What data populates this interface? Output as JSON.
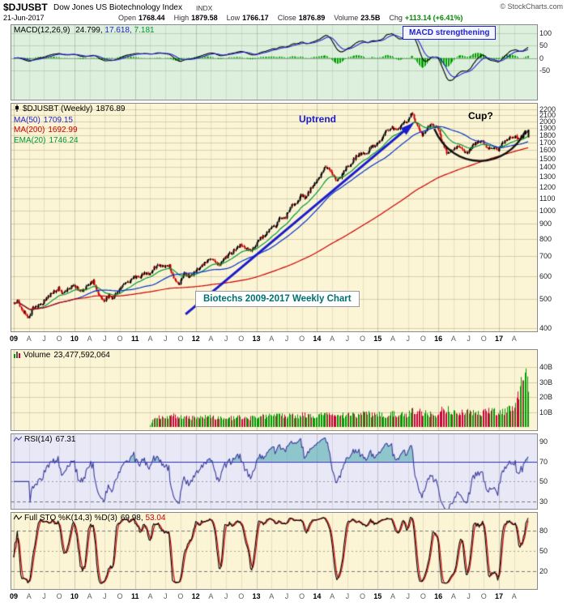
{
  "header": {
    "symbol": "$DJUSBT",
    "index_name": "Dow Jones US Biotechnology Index",
    "exchange": "INDX",
    "copyright": "© StockCharts.com",
    "date": "21-Jun-2017",
    "quote": {
      "open_label": "Open",
      "open": "1768.44",
      "high_label": "High",
      "high": "1879.58",
      "low_label": "Low",
      "low": "1766.17",
      "close_label": "Close",
      "close": "1876.89",
      "volume_label": "Volume",
      "volume": "23.5B",
      "chg_label": "Chg",
      "chg": "+113.14 (+6.41%)"
    }
  },
  "panels": {
    "macd": {
      "label": "MACD(12,26,9)",
      "value_macd": "24.799,",
      "value_signal": "17.618,",
      "value_hist": "7.181",
      "annotation": "MACD strengthening",
      "ticks": [
        100,
        50,
        0,
        -50
      ]
    },
    "price": {
      "legend_symbol": "$DJUSBT (Weekly)",
      "legend_value": "1876.89",
      "ma50_label": "MA(50)",
      "ma50_value": "1709.15",
      "ma200_label": "MA(200)",
      "ma200_value": "1692.99",
      "ema20_label": "EMA(20)",
      "ema20_value": "1746.24",
      "uptrend": "Uptrend",
      "cup": "Cup?",
      "caption": "Biotechs 2009-2017 Weekly Chart",
      "ticks": [
        2200,
        2100,
        2000,
        1900,
        1800,
        1700,
        1600,
        1500,
        1400,
        1300,
        1200,
        1100,
        1000,
        900,
        800,
        700,
        600,
        500,
        400
      ]
    },
    "volume": {
      "label": "Volume",
      "value": "23,477,592,064",
      "ticks": [
        {
          "v": 40,
          "label": "40B"
        },
        {
          "v": 30,
          "label": "30B"
        },
        {
          "v": 20,
          "label": "20B"
        },
        {
          "v": 10,
          "label": "10B"
        }
      ]
    },
    "rsi": {
      "label": "RSI(14)",
      "value": "67.31",
      "ticks": [
        90,
        70,
        50,
        30
      ]
    },
    "sto": {
      "label": "Full STO %K(14,3) %D(3)",
      "value_k": "69.98,",
      "value_d": "53.04",
      "ticks": [
        80,
        50,
        20
      ]
    }
  },
  "xaxis": {
    "ticks": [
      {
        "m": 0,
        "label": "09",
        "year": true
      },
      {
        "m": 3,
        "label": "A"
      },
      {
        "m": 6,
        "label": "J"
      },
      {
        "m": 9,
        "label": "O"
      },
      {
        "m": 12,
        "label": "10",
        "year": true
      },
      {
        "m": 15,
        "label": "A"
      },
      {
        "m": 18,
        "label": "J"
      },
      {
        "m": 21,
        "label": "O"
      },
      {
        "m": 24,
        "label": "11",
        "year": true
      },
      {
        "m": 27,
        "label": "A"
      },
      {
        "m": 30,
        "label": "J"
      },
      {
        "m": 33,
        "label": "O"
      },
      {
        "m": 36,
        "label": "12",
        "year": true
      },
      {
        "m": 39,
        "label": "A"
      },
      {
        "m": 42,
        "label": "J"
      },
      {
        "m": 45,
        "label": "O"
      },
      {
        "m": 48,
        "label": "13",
        "year": true
      },
      {
        "m": 51,
        "label": "A"
      },
      {
        "m": 54,
        "label": "J"
      },
      {
        "m": 57,
        "label": "O"
      },
      {
        "m": 60,
        "label": "14",
        "year": true
      },
      {
        "m": 63,
        "label": "A"
      },
      {
        "m": 66,
        "label": "J"
      },
      {
        "m": 69,
        "label": "O"
      },
      {
        "m": 72,
        "label": "15",
        "year": true
      },
      {
        "m": 75,
        "label": "A"
      },
      {
        "m": 78,
        "label": "J"
      },
      {
        "m": 81,
        "label": "O"
      },
      {
        "m": 84,
        "label": "16",
        "year": true
      },
      {
        "m": 87,
        "label": "A"
      },
      {
        "m": 90,
        "label": "J"
      },
      {
        "m": 93,
        "label": "O"
      },
      {
        "m": 96,
        "label": "17",
        "year": true
      },
      {
        "m": 99,
        "label": "A"
      }
    ]
  },
  "colors": {
    "up": "#000000",
    "down": "#cc0000",
    "vol_up": "#009900",
    "vol_down": "#cc0033",
    "ma50": "#0033cc",
    "ma200": "#cc0000",
    "ema20": "#009933",
    "macd": "#000000",
    "signal": "#2222cc",
    "hist": "#00a000",
    "rsi": "#3b3b9e",
    "teal_fill": "rgba(70,170,170,0.55)",
    "sto_k": "#000000",
    "sto_d": "#cc0000",
    "grid_yellow": "#d8d0a8",
    "grid_green": "#b7d4b7",
    "grid_lavender": "#c3c3de",
    "accent_blue": "#1a1acc",
    "caption_teal": "#007070"
  },
  "chart_data": {
    "type": "candlestick",
    "title": "$DJUSBT Dow Jones US Biotechnology Index, weekly 2009-2017, with MACD, Volume, RSI and Full Stochastic panels",
    "x_start": "Jan-2009",
    "x_end": "21-Jun-2017",
    "price_scale": "log",
    "price_range": [
      400,
      2200
    ],
    "monthly_close": [
      495,
      460,
      432,
      465,
      472,
      488,
      512,
      525,
      545,
      522,
      545,
      558,
      542,
      535,
      562,
      575,
      522,
      495,
      515,
      505,
      542,
      560,
      572,
      598,
      592,
      612,
      605,
      640,
      658,
      642,
      652,
      582,
      562,
      612,
      598,
      618,
      642,
      662,
      682,
      672,
      652,
      690,
      712,
      732,
      762,
      742,
      732,
      762,
      802,
      822,
      872,
      882,
      942,
      952,
      1032,
      1052,
      1122,
      1102,
      1182,
      1252,
      1322,
      1402,
      1352,
      1262,
      1302,
      1402,
      1442,
      1522,
      1562,
      1552,
      1642,
      1682,
      1752,
      1852,
      1902,
      1872,
      1952,
      2002,
      2152,
      1952,
      1802,
      1902,
      1952,
      1902,
      1702,
      1552,
      1602,
      1652,
      1602,
      1562,
      1652,
      1702,
      1722,
      1602,
      1622,
      1602,
      1682,
      1752,
      1782,
      1762,
      1782,
      1877
    ],
    "monthly_volume_B": [
      0,
      0,
      0,
      0,
      0,
      0,
      0,
      0,
      0,
      0,
      0,
      0,
      0,
      0,
      0,
      0,
      0,
      0,
      0,
      0,
      0,
      0,
      0,
      0,
      0,
      0,
      0,
      6,
      6.5,
      6,
      6.5,
      8,
      7,
      6.5,
      6,
      6,
      6,
      6.5,
      7,
      6,
      6,
      6.5,
      6,
      6,
      6.5,
      6,
      6,
      6.5,
      7,
      7,
      7.5,
      7,
      7.5,
      7,
      7.5,
      7,
      8,
      8,
      7.5,
      7.5,
      8,
      9,
      9.5,
      9,
      8,
      7.5,
      8,
      7.5,
      8.5,
      9,
      8.5,
      8,
      8.5,
      8,
      9,
      8.5,
      8,
      8.5,
      10,
      11,
      9.5,
      9,
      8.5,
      8.5,
      11,
      12,
      10,
      9,
      9.5,
      10,
      9.5,
      9,
      9.5,
      10,
      11,
      9.5,
      10,
      11,
      14,
      20,
      30,
      38
    ],
    "last_week": {
      "open": 1768.44,
      "high": 1879.58,
      "low": 1766.17,
      "close": 1876.89,
      "volume_B": 23.5
    },
    "indicators": {
      "ma50": 1709.15,
      "ma200": 1692.99,
      "ema20": 1746.24,
      "macd": 24.799,
      "macd_signal": 17.618,
      "macd_hist": 7.181,
      "rsi14": 67.31,
      "sto_k": 69.98,
      "sto_d": 53.04
    },
    "annotations": {
      "uptrend_arrow": {
        "from_month": 34,
        "from_price": 445,
        "to_month": 78,
        "to_price": 1905
      },
      "cup_curve": {
        "from_month": 83.2,
        "from_price": 1890,
        "c1_month": 87,
        "c1_price": 1340,
        "c2_month": 97.5,
        "c2_price": 1370,
        "to_month": 101.3,
        "to_price": 1865
      }
    }
  }
}
